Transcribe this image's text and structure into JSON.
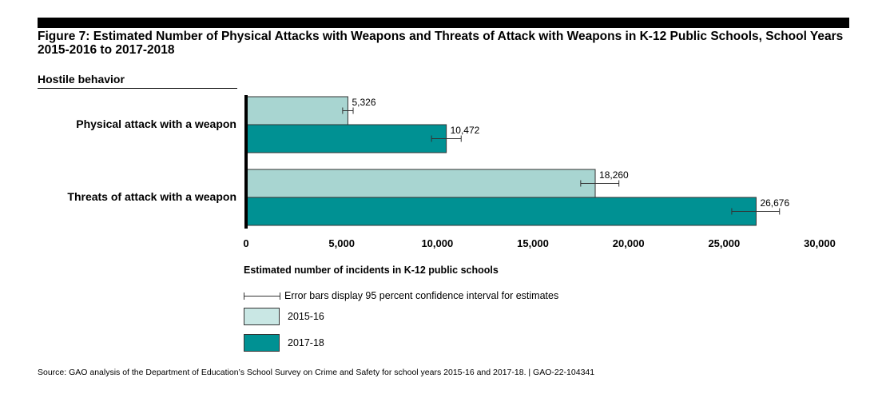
{
  "title": "Figure 7: Estimated Number of Physical Attacks with Weapons and Threats of Attack with Weapons in K-12 Public Schools, School Years 2015-2016 to 2017-2018",
  "chart_data": {
    "type": "bar",
    "orientation": "horizontal",
    "category_header": "Hostile behavior",
    "categories": [
      "Physical attack with a weapon",
      "Threats of attack with a weapon"
    ],
    "series": [
      {
        "name": "2015-16",
        "color": "#a8d5d1",
        "values": [
          5326,
          18260
        ],
        "value_labels": [
          "5,326",
          "18,260"
        ],
        "ci_low": [
          5050,
          17500
        ],
        "ci_high": [
          5600,
          19500
        ]
      },
      {
        "name": "2017-18",
        "color": "#009193",
        "values": [
          10472,
          26676
        ],
        "value_labels": [
          "10,472",
          "26,676"
        ],
        "ci_low": [
          9700,
          25400
        ],
        "ci_high": [
          11250,
          27900
        ]
      }
    ],
    "xlim": [
      0,
      30000
    ],
    "xticks": [
      0,
      5000,
      10000,
      15000,
      20000,
      25000,
      30000
    ],
    "xtick_labels": [
      "0",
      "5,000",
      "10,000",
      "15,000",
      "20,000",
      "25,000",
      "30,000"
    ],
    "xlabel": "Estimated number of incidents in K-12 public schools",
    "grid": false,
    "error_bar_note": "Error bars display 95 percent confidence interval for estimates"
  },
  "source": "Source: GAO analysis of the Department of Education’s School Survey on Crime and Safety for school years 2015-16 and 2017-18.  |  GAO-22-104341"
}
